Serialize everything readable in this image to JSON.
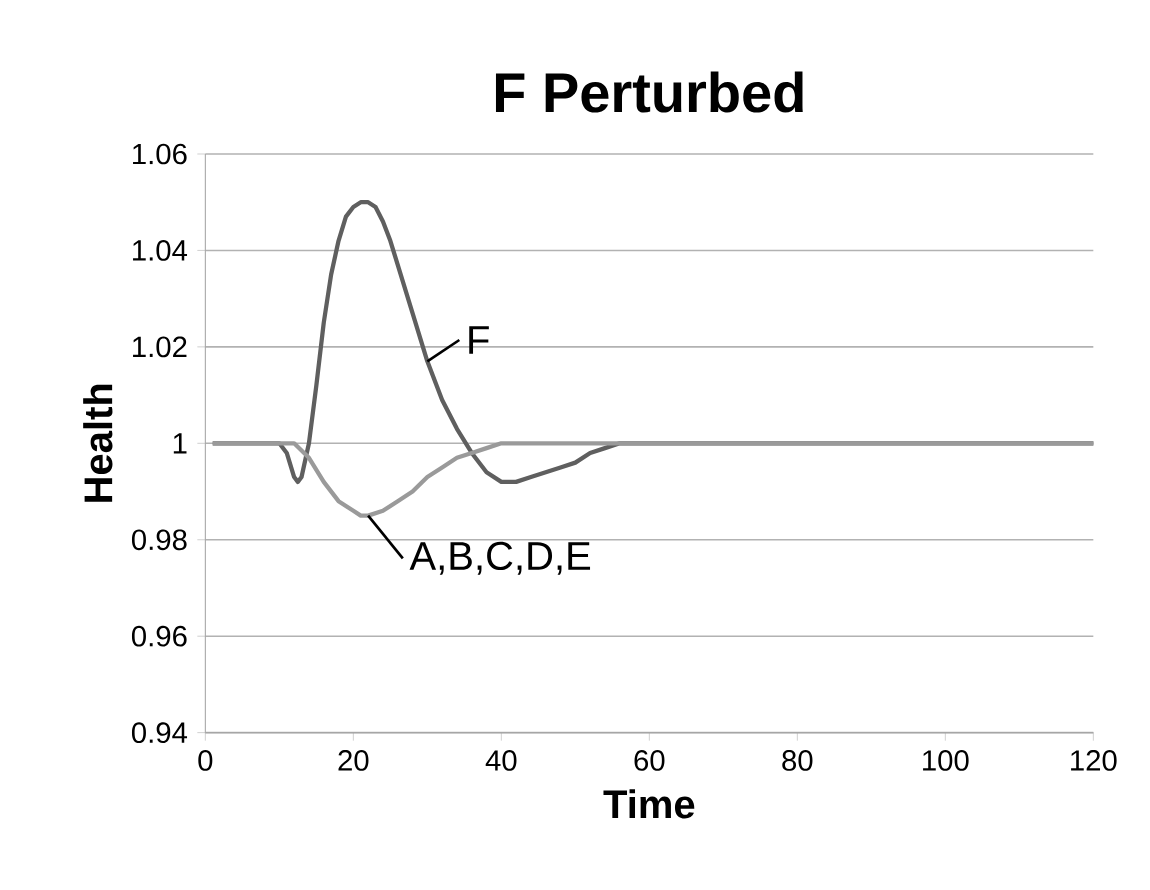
{
  "chart_data": {
    "type": "line",
    "title": "F Perturbed",
    "xlabel": "Time",
    "ylabel": "Health",
    "xlim": [
      0,
      120
    ],
    "xticks": [
      0,
      20,
      40,
      60,
      80,
      100,
      120
    ],
    "ylim": [
      0.94,
      1.06
    ],
    "yticks": [
      0.94,
      0.96,
      0.98,
      1,
      1.02,
      1.04,
      1.06
    ],
    "grid": "y",
    "legend": false,
    "marker": "none",
    "line_style": "solid",
    "series": [
      {
        "name": "F",
        "color": "#5f5f5f",
        "x": [
          1,
          10,
          11,
          12,
          12.5,
          13,
          14,
          15,
          16,
          17,
          18,
          19,
          20,
          21,
          22,
          23,
          24,
          25,
          26,
          28,
          30,
          32,
          34,
          36,
          38,
          40,
          42,
          44,
          46,
          48,
          50,
          52,
          54,
          56,
          58,
          60,
          70,
          80,
          90,
          100,
          110,
          120
        ],
        "values": [
          1,
          1,
          0.998,
          0.993,
          0.992,
          0.993,
          1.0,
          1.012,
          1.025,
          1.035,
          1.042,
          1.047,
          1.049,
          1.05,
          1.05,
          1.049,
          1.046,
          1.042,
          1.037,
          1.027,
          1.017,
          1.009,
          1.003,
          0.998,
          0.994,
          0.992,
          0.992,
          0.993,
          0.994,
          0.995,
          0.996,
          0.998,
          0.999,
          1,
          1,
          1,
          1,
          1,
          1,
          1,
          1,
          1
        ]
      },
      {
        "name": "A,B,C,D,E",
        "color": "#9a9a9a",
        "x": [
          1,
          10,
          12,
          14,
          16,
          18,
          20,
          21,
          22,
          24,
          26,
          28,
          30,
          32,
          34,
          36,
          38,
          40,
          42,
          50,
          60,
          120
        ],
        "values": [
          1,
          1,
          1,
          0.997,
          0.992,
          0.988,
          0.986,
          0.985,
          0.985,
          0.986,
          0.988,
          0.99,
          0.993,
          0.995,
          0.997,
          0.998,
          0.999,
          1,
          1,
          1,
          1,
          1
        ]
      }
    ]
  }
}
